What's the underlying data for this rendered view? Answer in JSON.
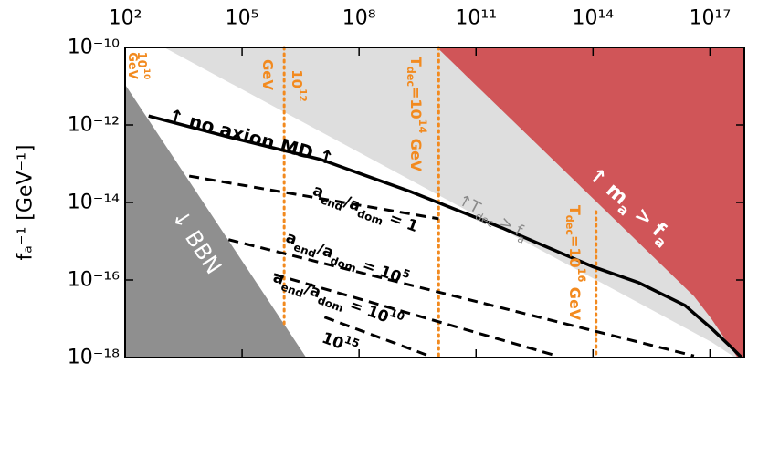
{
  "chart_data": {
    "type": "region",
    "xscale": "log",
    "yscale": "log",
    "xaxis_position": "top",
    "xlim": [
      100.0,
      7.6e+17
    ],
    "ylim": [
      1e-18,
      1e-10
    ],
    "xticks": [
      {
        "value": 100.0,
        "label": "10²"
      },
      {
        "value": 100000.0,
        "label": "10⁵"
      },
      {
        "value": 100000000.0,
        "label": "10⁸"
      },
      {
        "value": 100000000000.0,
        "label": "10¹¹"
      },
      {
        "value": 100000000000000.0,
        "label": "10¹⁴"
      },
      {
        "value": 1e+17,
        "label": "10¹⁷"
      }
    ],
    "yticks": [
      {
        "value": 1e-10,
        "label": "10⁻¹⁰"
      },
      {
        "value": 1e-12,
        "label": "10⁻¹²"
      },
      {
        "value": 1e-14,
        "label": "10⁻¹⁴"
      },
      {
        "value": 1e-16,
        "label": "10⁻¹⁶"
      },
      {
        "value": 1e-18,
        "label": "10⁻¹⁸"
      }
    ],
    "ylabel": "fₐ⁻¹ [GeV⁻¹]",
    "regions": [
      {
        "color": "#dedede",
        "x": [
          1000.0,
          7.6e+17,
          7.6e+17,
          4.4e+17,
          1.1e+17
        ],
        "y": [
          1e-10,
          1e-10,
          1e-18,
          1e-18,
          2.5e-18
        ]
      },
      {
        "color": "#d05558",
        "x": [
          10000000000.0,
          7.6e+17,
          7.6e+17,
          5.1e+17,
          1.1e+17,
          3.9e+16
        ],
        "y": [
          1e-10,
          1e-10,
          1e-18,
          1e-18,
          9.8e-18,
          3.8e-17
        ]
      },
      {
        "color": "#8f8f8f",
        "x": [
          100.0,
          100.0,
          4400000.0
        ],
        "y": [
          1.1e-11,
          1e-18,
          1e-18
        ]
      }
    ],
    "lines": [
      {
        "color": "#f28a1f",
        "style": "dotted",
        "width": 3,
        "x": [
          1200000.0,
          1200000.0
        ],
        "y": [
          1e-10,
          7.4e-18
        ]
      },
      {
        "color": "#f28a1f",
        "style": "dotted",
        "width": 3,
        "x": [
          11000000000.0,
          11000000000.0
        ],
        "y": [
          1e-10,
          1e-18
        ]
      },
      {
        "color": "#f28a1f",
        "style": "dotted",
        "width": 3,
        "x": [
          120000000000000.0,
          120000000000000.0
        ],
        "y": [
          5.8e-15,
          1e-18
        ]
      },
      {
        "color": "#000000",
        "style": "solid",
        "width": 3.5,
        "x": [
          400.0,
          45000.0,
          10000000.0,
          2100000000.0,
          470000000000.0,
          100000000000000.0,
          1500000000000000.0,
          2.3e+16,
          1.1e+17,
          3.4e+17,
          6.5e+17
        ],
        "y": [
          1.7e-12,
          4.9e-13,
          1.3e-13,
          1.9e-14,
          2.2e-15,
          2.2e-16,
          8.5e-17,
          2.2e-17,
          5.6e-18,
          1.9e-18,
          1e-18
        ]
      },
      {
        "color": "#000000",
        "style": "dashed",
        "width": 3,
        "x": [
          4400.0,
          11000000000.0
        ],
        "y": [
          4.8e-14,
          3.8e-15
        ]
      },
      {
        "color": "#000000",
        "style": "dashed",
        "width": 3,
        "x": [
          45000.0,
          3.9e+16
        ],
        "y": [
          1.1e-15,
          1.1e-18
        ]
      },
      {
        "color": "#000000",
        "style": "dashed",
        "width": 3,
        "x": [
          660000.0,
          12000000000000.0
        ],
        "y": [
          1.4e-16,
          1.1e-18
        ]
      },
      {
        "color": "#000000",
        "style": "dashed",
        "width": 3,
        "x": [
          13000000.0,
          6300000000.0
        ],
        "y": [
          1.1e-17,
          1.1e-18
        ]
      }
    ],
    "annotations": [
      {
        "text": [
          "↑ no axion MD ↑"
        ]
      },
      {
        "text": [
          "a",
          {
            "sub": "end"
          },
          "/a",
          {
            "sub": "dom"
          },
          " = 1"
        ]
      },
      {
        "text": [
          "a",
          {
            "sub": "end"
          },
          "/a",
          {
            "sub": "dom"
          },
          " = 10",
          {
            "sup": "5"
          }
        ]
      },
      {
        "text": [
          "a",
          {
            "sub": "end"
          },
          "/a",
          {
            "sub": "dom"
          },
          " = 10",
          {
            "sup": "10"
          }
        ]
      },
      {
        "text": [
          "10",
          {
            "sup": "15"
          }
        ]
      },
      {
        "text": [
          "↓ BBN"
        ]
      },
      {
        "text": [
          "↑ m",
          {
            "sub": "a"
          },
          " > f",
          {
            "sub": "a"
          }
        ]
      },
      {
        "text": [
          "↑T",
          {
            "sub": "dec"
          },
          " > f",
          {
            "sub": "a"
          }
        ]
      },
      {
        "text": [
          "10",
          {
            "sup": "10"
          }
        ]
      },
      {
        "text": [
          "GeV"
        ]
      },
      {
        "text": [
          "10",
          {
            "sup": "12"
          }
        ]
      },
      {
        "text": [
          "GeV"
        ]
      },
      {
        "text": [
          "T",
          {
            "sub": "dec"
          },
          "=10",
          {
            "sup": "14"
          },
          " GeV"
        ]
      },
      {
        "text": [
          "T",
          {
            "sub": "dec"
          },
          "=10",
          {
            "sup": "16"
          },
          " GeV"
        ]
      }
    ]
  }
}
